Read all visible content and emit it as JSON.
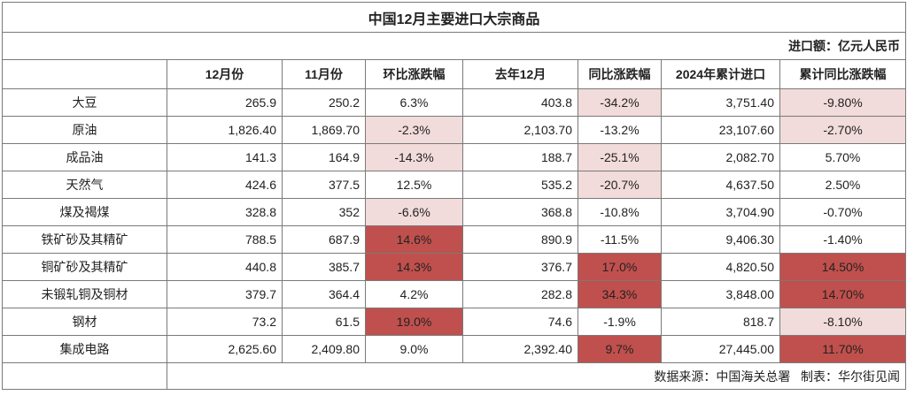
{
  "title": "中国12月主要进口大宗商品",
  "unit": "进口额：亿元人民币",
  "headers": [
    "",
    "12月份",
    "11月份",
    "环比涨跌幅",
    "去年12月",
    "同比涨跌幅",
    "2024年累计进口",
    "累计同比涨跌幅"
  ],
  "rows": [
    {
      "name": "大豆",
      "cells": [
        "265.9",
        "250.2",
        "6.3%",
        "403.8",
        "-34.2%",
        "3,751.40",
        "-9.80%"
      ]
    },
    {
      "name": "原油",
      "cells": [
        "1,826.40",
        "1,869.70",
        "-2.3%",
        "2,103.70",
        "-13.2%",
        "23,107.60",
        "-2.70%"
      ]
    },
    {
      "name": "成品油",
      "cells": [
        "141.3",
        "164.9",
        "-14.3%",
        "188.7",
        "-25.1%",
        "2,082.70",
        "5.70%"
      ]
    },
    {
      "name": "天然气",
      "cells": [
        "424.6",
        "377.5",
        "12.5%",
        "535.2",
        "-20.7%",
        "4,637.50",
        "2.50%"
      ]
    },
    {
      "name": "煤及褐煤",
      "cells": [
        "328.8",
        "352",
        "-6.6%",
        "368.8",
        "-10.8%",
        "3,704.90",
        "-0.70%"
      ]
    },
    {
      "name": "铁矿砂及其精矿",
      "cells": [
        "788.5",
        "687.9",
        "14.6%",
        "890.9",
        "-11.5%",
        "9,406.30",
        "-1.40%"
      ]
    },
    {
      "name": "铜矿砂及其精矿",
      "cells": [
        "440.8",
        "385.7",
        "14.3%",
        "376.7",
        "17.0%",
        "4,820.50",
        "14.50%"
      ]
    },
    {
      "name": "未锻轧铜及铜材",
      "cells": [
        "379.7",
        "364.4",
        "4.2%",
        "282.8",
        "34.3%",
        "3,848.00",
        "14.70%"
      ]
    },
    {
      "name": "钢材",
      "cells": [
        "73.2",
        "61.5",
        "19.0%",
        "74.6",
        "-1.9%",
        "818.7",
        "-8.10%"
      ]
    },
    {
      "name": "集成电路",
      "cells": [
        "2,625.60",
        "2,409.80",
        "9.0%",
        "2,392.40",
        "9.7%",
        "27,445.00",
        "11.70%"
      ]
    }
  ],
  "highlights": [
    [
      "",
      "",
      "",
      "",
      "light",
      "",
      "light"
    ],
    [
      "",
      "",
      "light",
      "",
      "",
      "",
      "light"
    ],
    [
      "",
      "",
      "light",
      "",
      "light",
      "",
      ""
    ],
    [
      "",
      "",
      "",
      "",
      "light",
      "",
      ""
    ],
    [
      "",
      "",
      "light",
      "",
      "",
      "",
      ""
    ],
    [
      "",
      "",
      "dark",
      "",
      "",
      "",
      ""
    ],
    [
      "",
      "",
      "dark",
      "",
      "dark",
      "",
      "dark"
    ],
    [
      "",
      "",
      "",
      "",
      "dark",
      "",
      "dark"
    ],
    [
      "",
      "",
      "dark",
      "",
      "",
      "",
      "light"
    ],
    [
      "",
      "",
      "",
      "",
      "dark",
      "",
      "dark"
    ]
  ],
  "colors": {
    "light": "#f2dbdb",
    "dark": "#c0504d"
  },
  "footer": "数据来源：中国海关总署   制表：华尔街见闻",
  "chart_data": {
    "type": "table",
    "title": "中国12月主要进口大宗商品",
    "unit": "进口额：亿元人民币",
    "columns": [
      "12月份",
      "11月份",
      "环比涨跌幅",
      "去年12月",
      "同比涨跌幅",
      "2024年累计进口",
      "累计同比涨跌幅"
    ],
    "categories": [
      "大豆",
      "原油",
      "成品油",
      "天然气",
      "煤及褐煤",
      "铁矿砂及其精矿",
      "铜矿砂及其精矿",
      "未锻轧铜及铜材",
      "钢材",
      "集成电路"
    ],
    "series": [
      {
        "name": "12月份",
        "values": [
          265.9,
          1826.4,
          141.3,
          424.6,
          328.8,
          788.5,
          440.8,
          379.7,
          73.2,
          2625.6
        ]
      },
      {
        "name": "11月份",
        "values": [
          250.2,
          1869.7,
          164.9,
          377.5,
          352,
          687.9,
          385.7,
          364.4,
          61.5,
          2409.8
        ]
      },
      {
        "name": "环比涨跌幅",
        "values": [
          6.3,
          -2.3,
          -14.3,
          12.5,
          -6.6,
          14.6,
          14.3,
          4.2,
          19.0,
          9.0
        ]
      },
      {
        "name": "去年12月",
        "values": [
          403.8,
          2103.7,
          188.7,
          535.2,
          368.8,
          890.9,
          376.7,
          282.8,
          74.6,
          2392.4
        ]
      },
      {
        "name": "同比涨跌幅",
        "values": [
          -34.2,
          -13.2,
          -25.1,
          -20.7,
          -10.8,
          -11.5,
          17.0,
          34.3,
          -1.9,
          9.7
        ]
      },
      {
        "name": "2024年累计进口",
        "values": [
          3751.4,
          23107.6,
          2082.7,
          4637.5,
          3704.9,
          9406.3,
          4820.5,
          3848.0,
          818.7,
          27445.0
        ]
      },
      {
        "name": "累计同比涨跌幅",
        "values": [
          -9.8,
          -2.7,
          5.7,
          2.5,
          -0.7,
          -1.4,
          14.5,
          14.7,
          -8.1,
          11.7
        ]
      }
    ]
  }
}
